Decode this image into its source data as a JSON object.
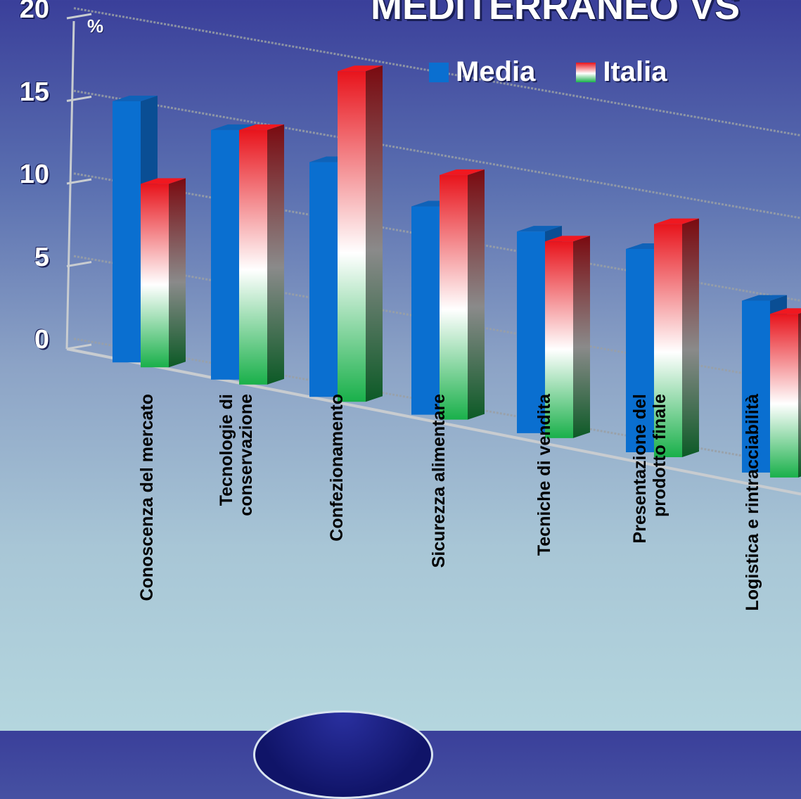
{
  "chart_data": {
    "type": "bar",
    "title": "MEDITERRANEO VS",
    "ylabel": "%",
    "ylim": [
      0,
      20
    ],
    "yticks": [
      0,
      5,
      10,
      15,
      20
    ],
    "grid": true,
    "legend_placement": "top-right",
    "categories": [
      "Conoscenza del mercato",
      "Tecnologie di\nconservazione",
      "Confezionamento",
      "Sicurezza alimentare",
      "Tecniche di  vendita",
      "Presentazione del\nprodotto finale",
      "Logistica e rintracciabilità"
    ],
    "series": [
      {
        "name": "Media",
        "values": [
          15.8,
          15.1,
          14.2,
          12.6,
          12.2,
          12.3,
          10.4
        ],
        "color": "#0a6fd0"
      },
      {
        "name": "Italia",
        "values": [
          11.1,
          15.4,
          20.0,
          14.8,
          11.9,
          14.1,
          9.9
        ],
        "color_top": "#e8141c",
        "color_mid": "#ffffff",
        "color_bottom": "#19b04a"
      }
    ]
  }
}
